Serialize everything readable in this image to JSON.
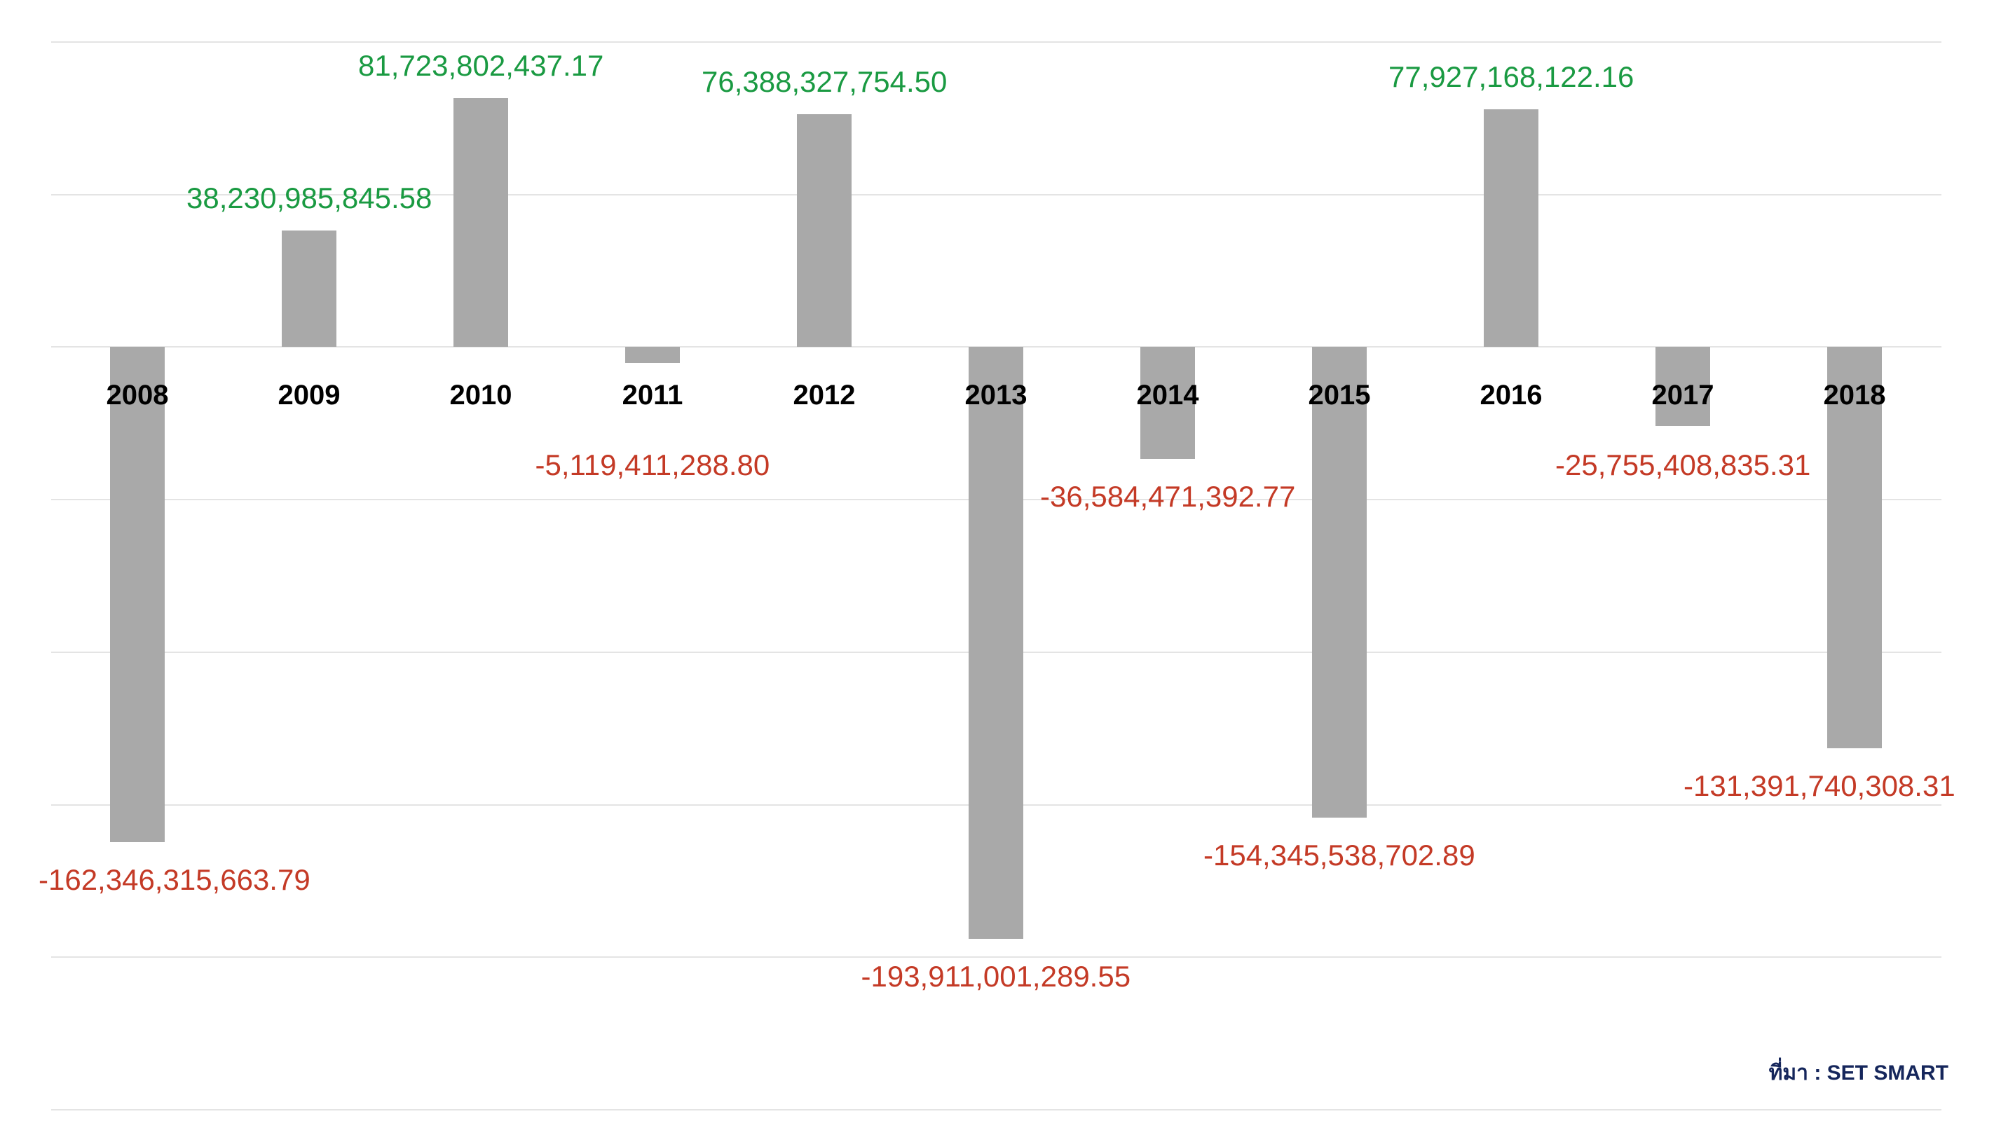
{
  "chart_data": {
    "type": "bar",
    "title": "",
    "xlabel": "",
    "ylabel": "",
    "categories": [
      "2008",
      "2009",
      "2010",
      "2011",
      "2012",
      "2013",
      "2014",
      "2015",
      "2016",
      "2017",
      "2018"
    ],
    "values": [
      -162346315663.79,
      38230985845.58,
      81723802437.17,
      -5119411288.8,
      76388327754.5,
      -193911001289.55,
      -36584471392.77,
      -154345538702.89,
      77927168122.16,
      -25755408835.31,
      -131391740308.31
    ],
    "value_labels": [
      "-162,346,315,663.79",
      "38,230,985,845.58",
      "81,723,802,437.17",
      "-5,119,411,288.80",
      "76,388,327,754.50",
      "-193,911,001,289.55",
      "-36,584,471,392.77",
      "-154,345,538,702.89",
      "77,927,168,122.16",
      "-25,755,408,835.31",
      "-131,391,740,308.31"
    ],
    "ylim": [
      -250000000000,
      100000000000
    ],
    "gridline_step": 50000000000,
    "grid": true,
    "legend": false,
    "axis_tick_labels": false,
    "bar_color": "#a9a9a9",
    "positive_value_color": "#1a9a42",
    "negative_value_color": "#c43a26",
    "category_label_color": "#000000",
    "gridline_color": "#e4e4e4",
    "background_color": "#ffffff"
  },
  "source_note": {
    "text": "ที่มา : SET SMART",
    "color": "#15265b"
  }
}
